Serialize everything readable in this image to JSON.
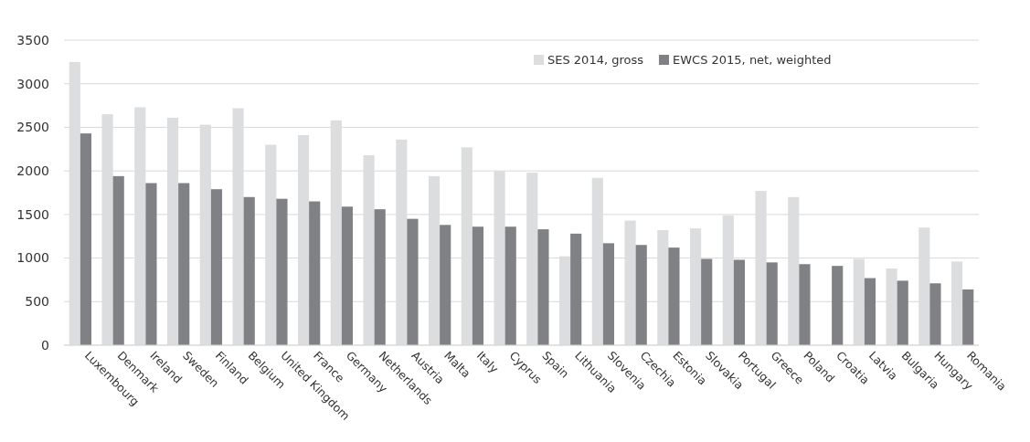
{
  "chart_data": {
    "type": "bar",
    "categories": [
      "Luxembourg",
      "Denmark",
      "Ireland",
      "Sweden",
      "Finland",
      "Belgium",
      "United Kingdom",
      "France",
      "Germany",
      "Netherlands",
      "Austria",
      "Malta",
      "Italy",
      "Cyprus",
      "Spain",
      "Lithuania",
      "Slovenia",
      "Czechia",
      "Estonia",
      "Slovakia",
      "Portugal",
      "Greece",
      "Poland",
      "Croatia",
      "Latvia",
      "Bulgaria",
      "Hungary",
      "Romania"
    ],
    "series": [
      {
        "name": "SES 2014, gross",
        "color": "#dcdddf",
        "values": [
          3250,
          2650,
          2730,
          2610,
          2530,
          2720,
          2300,
          2410,
          2580,
          2180,
          2360,
          1940,
          2270,
          2000,
          1980,
          1020,
          1920,
          1430,
          1320,
          1340,
          1490,
          1770,
          1700,
          null,
          990,
          880,
          1350,
          960
        ]
      },
      {
        "name": "EWCS 2015, net, weighted",
        "color": "#808184",
        "values": [
          2430,
          1940,
          1860,
          1860,
          1790,
          1700,
          1680,
          1650,
          1590,
          1560,
          1450,
          1380,
          1360,
          1360,
          1330,
          1280,
          1170,
          1150,
          1120,
          990,
          980,
          950,
          930,
          910,
          770,
          740,
          710,
          640
        ]
      }
    ],
    "ylim": [
      0,
      3500
    ],
    "yticks": [
      0,
      500,
      1000,
      1500,
      2000,
      2500,
      3000,
      3500
    ],
    "grid": "y",
    "legend": "top right"
  }
}
